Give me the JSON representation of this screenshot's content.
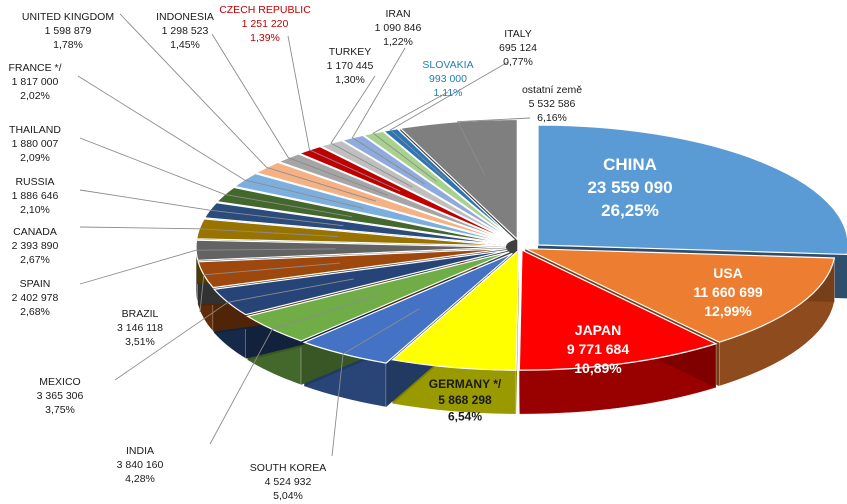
{
  "chart_data": {
    "type": "pie",
    "title": "",
    "style": "3d-exploded",
    "slices": [
      {
        "name": "CHINA",
        "value": "23 559 090",
        "pct": "26,25%",
        "share": 26.25,
        "color": "#5b9bd5"
      },
      {
        "name": "USA",
        "value": "11 660 699",
        "pct": "12,99%",
        "share": 12.99,
        "color": "#ed7d31"
      },
      {
        "name": "JAPAN",
        "value": "9 771 684",
        "pct": "10,89%",
        "share": 10.89,
        "color": "#ff0000"
      },
      {
        "name": "GERMANY */",
        "value": "5 868 298",
        "pct": "6,54%",
        "share": 6.54,
        "color": "#ffff00"
      },
      {
        "name": "SOUTH KOREA",
        "value": "4 524 932",
        "pct": "5,04%",
        "share": 5.04,
        "color": "#4472c4"
      },
      {
        "name": "INDIA",
        "value": "3 840 160",
        "pct": "4,28%",
        "share": 4.28,
        "color": "#70ad47"
      },
      {
        "name": "MEXICO",
        "value": "3 365 306",
        "pct": "3,75%",
        "share": 3.75,
        "color": "#264478"
      },
      {
        "name": "BRAZIL",
        "value": "3 146 118",
        "pct": "3,51%",
        "share": 3.51,
        "color": "#9e480e"
      },
      {
        "name": "SPAIN",
        "value": "2 402 978",
        "pct": "2,68%",
        "share": 2.68,
        "color": "#636363"
      },
      {
        "name": "CANADA",
        "value": "2 393 890",
        "pct": "2,67%",
        "share": 2.67,
        "color": "#997300"
      },
      {
        "name": "RUSSIA",
        "value": "1 886 646",
        "pct": "2,10%",
        "share": 2.1,
        "color": "#2a4b7c"
      },
      {
        "name": "THAILAND",
        "value": "1 880 007",
        "pct": "2,09%",
        "share": 2.09,
        "color": "#43682b"
      },
      {
        "name": "FRANCE */",
        "value": "1 817 000",
        "pct": "2,02%",
        "share": 2.02,
        "color": "#7cafdd"
      },
      {
        "name": "UNITED KINGDOM",
        "value": "1 598 879",
        "pct": "1,78%",
        "share": 1.78,
        "color": "#f4b183"
      },
      {
        "name": "INDONESIA",
        "value": "1 298 523",
        "pct": "1,45%",
        "share": 1.45,
        "color": "#a5a5a5"
      },
      {
        "name": "CZECH REPUBLIC",
        "value": "1 251 220",
        "pct": "1,39%",
        "share": 1.39,
        "color": "#c00000"
      },
      {
        "name": "TURKEY",
        "value": "1 170 445",
        "pct": "1,30%",
        "share": 1.3,
        "color": "#bfbfbf"
      },
      {
        "name": "IRAN",
        "value": "1 090 846",
        "pct": "1,22%",
        "share": 1.22,
        "color": "#8faadc"
      },
      {
        "name": "SLOVAKIA",
        "value": "993 000",
        "pct": "1,11%",
        "share": 1.11,
        "color": "#a9d18e"
      },
      {
        "name": "ITALY",
        "value": "695 124",
        "pct": "0,77%",
        "share": 0.77,
        "color": "#2e75b6"
      },
      {
        "name": "ostatní země",
        "value": "5 532 586",
        "pct": "6,16%",
        "share": 6.16,
        "color": "#7f7f7f"
      }
    ]
  }
}
